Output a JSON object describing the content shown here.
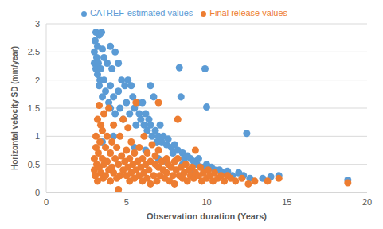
{
  "chart_data": {
    "type": "scatter",
    "x_label": "Observation duration (Years)",
    "y_label": "Horizontal velocity SD (mm/year)",
    "xlim": [
      0,
      20
    ],
    "xticks": [
      0,
      5,
      10,
      15,
      20
    ],
    "ylim": [
      0,
      3
    ],
    "yticks": [
      0,
      0.5,
      1,
      1.5,
      2,
      2.5,
      3
    ],
    "grid": true,
    "legend": "top",
    "series": [
      {
        "name": "CATREF-estimated values",
        "color": "#5b9bd5",
        "marker": "circle",
        "x": [
          3.0,
          3.0,
          3.05,
          3.1,
          3.1,
          3.15,
          3.2,
          3.2,
          3.25,
          3.3,
          3.3,
          3.35,
          3.4,
          3.45,
          3.5,
          3.5,
          3.6,
          3.6,
          3.7,
          3.8,
          3.9,
          4.0,
          4.0,
          4.1,
          4.2,
          4.3,
          4.3,
          4.5,
          4.5,
          4.6,
          4.7,
          4.8,
          4.9,
          5.0,
          5.1,
          5.2,
          5.3,
          5.4,
          5.5,
          5.6,
          5.7,
          5.8,
          5.9,
          6.0,
          6.1,
          6.2,
          6.3,
          6.4,
          6.5,
          6.6,
          6.7,
          6.8,
          6.9,
          7.0,
          7.1,
          7.2,
          7.3,
          7.5,
          7.6,
          7.8,
          7.9,
          8.0,
          8.2,
          8.3,
          8.4,
          8.5,
          8.6,
          8.8,
          9.0,
          9.2,
          9.4,
          9.5,
          9.7,
          9.9,
          10.0,
          10.0,
          10.3,
          10.5,
          10.8,
          11.0,
          11.3,
          11.6,
          12.0,
          12.3,
          12.5,
          12.7,
          13.5,
          14.0,
          14.5,
          18.8,
          3.5,
          4.2,
          5.5,
          6.2,
          7.0,
          7.5,
          8.5,
          9.0,
          6.5,
          4.0
        ],
        "values": [
          2.3,
          2.5,
          2.7,
          2.85,
          2.2,
          2.4,
          2.1,
          2.6,
          2.3,
          2.8,
          1.9,
          2.0,
          2.2,
          2.85,
          2.55,
          1.7,
          2.0,
          2.4,
          1.8,
          2.3,
          1.6,
          1.9,
          1.5,
          2.2,
          1.7,
          2.5,
          1.4,
          1.8,
          2.3,
          1.5,
          2.0,
          1.3,
          1.9,
          1.6,
          2.0,
          1.4,
          1.9,
          1.7,
          1.5,
          1.2,
          1.6,
          1.4,
          1.3,
          1.6,
          1.2,
          1.4,
          1.1,
          1.3,
          1.2,
          1.0,
          1.7,
          1.1,
          0.9,
          1.0,
          1.2,
          0.9,
          1.0,
          0.85,
          0.95,
          0.8,
          0.7,
          0.85,
          0.75,
          2.22,
          1.7,
          0.7,
          0.6,
          0.65,
          0.6,
          0.55,
          0.5,
          0.6,
          0.45,
          2.2,
          1.52,
          0.5,
          0.45,
          0.4,
          0.4,
          0.35,
          0.38,
          0.3,
          0.35,
          0.3,
          1.05,
          0.25,
          0.25,
          0.28,
          0.3,
          0.22,
          0.9,
          1.0,
          0.8,
          0.75,
          0.6,
          0.55,
          0.5,
          0.4,
          1.9,
          2.6
        ]
      },
      {
        "name": "Final release values",
        "color": "#ed7d31",
        "marker": "circle",
        "x": [
          3.0,
          3.0,
          3.05,
          3.1,
          3.1,
          3.15,
          3.2,
          3.2,
          3.25,
          3.3,
          3.3,
          3.35,
          3.4,
          3.4,
          3.5,
          3.5,
          3.55,
          3.6,
          3.6,
          3.7,
          3.7,
          3.8,
          3.8,
          3.9,
          3.9,
          4.0,
          4.0,
          4.1,
          4.1,
          4.2,
          4.2,
          4.3,
          4.4,
          4.4,
          4.5,
          4.5,
          4.6,
          4.6,
          4.7,
          4.8,
          4.8,
          4.9,
          5.0,
          5.0,
          5.1,
          5.1,
          5.2,
          5.2,
          5.3,
          5.3,
          5.4,
          5.5,
          5.5,
          5.6,
          5.6,
          5.7,
          5.8,
          5.8,
          5.9,
          6.0,
          6.0,
          6.1,
          6.1,
          6.2,
          6.3,
          6.3,
          6.4,
          6.5,
          6.5,
          6.6,
          6.7,
          6.8,
          6.8,
          6.9,
          7.0,
          7.0,
          7.1,
          7.2,
          7.3,
          7.4,
          7.5,
          7.5,
          7.6,
          7.7,
          7.8,
          7.9,
          8.0,
          8.0,
          8.1,
          8.2,
          8.3,
          8.4,
          8.5,
          8.6,
          8.7,
          8.8,
          8.9,
          9.0,
          9.1,
          9.2,
          9.3,
          9.5,
          9.6,
          9.7,
          9.8,
          10.0,
          10.1,
          10.2,
          10.4,
          10.5,
          10.7,
          10.9,
          11.1,
          11.3,
          11.5,
          11.8,
          12.2,
          12.6,
          13.0,
          13.8,
          14.5,
          18.8,
          7.0,
          8.2,
          9.3
        ],
        "values": [
          0.4,
          0.6,
          0.3,
          0.8,
          1.0,
          0.5,
          1.3,
          0.2,
          0.7,
          1.55,
          0.45,
          0.9,
          1.2,
          0.35,
          1.1,
          0.6,
          0.25,
          1.4,
          0.5,
          0.8,
          0.3,
          1.0,
          0.55,
          0.4,
          1.5,
          0.7,
          0.2,
          0.9,
          0.45,
          1.2,
          0.35,
          0.6,
          0.8,
          0.25,
          0.05,
          0.5,
          1.0,
          0.3,
          0.65,
          0.4,
          1.3,
          0.55,
          0.3,
          0.75,
          0.45,
          1.15,
          0.2,
          0.6,
          0.9,
          0.35,
          0.5,
          0.7,
          0.25,
          1.6,
          0.4,
          0.55,
          0.3,
          0.8,
          0.45,
          0.2,
          0.6,
          0.35,
          1.0,
          0.5,
          0.7,
          0.25,
          0.4,
          0.55,
          0.15,
          0.85,
          0.3,
          0.5,
          0.65,
          0.2,
          0.45,
          0.75,
          0.3,
          0.55,
          0.4,
          0.25,
          0.6,
          0.35,
          0.5,
          0.2,
          0.45,
          0.3,
          0.55,
          0.15,
          0.4,
          0.6,
          0.3,
          0.45,
          0.25,
          0.35,
          0.5,
          0.2,
          0.4,
          0.3,
          0.45,
          0.25,
          0.35,
          0.3,
          0.45,
          0.2,
          0.35,
          0.25,
          0.4,
          0.3,
          0.2,
          0.35,
          0.25,
          0.3,
          0.2,
          0.3,
          0.25,
          0.2,
          0.25,
          0.15,
          0.2,
          0.2,
          0.25,
          0.17,
          1.6,
          1.3,
          0.75
        ]
      }
    ]
  }
}
